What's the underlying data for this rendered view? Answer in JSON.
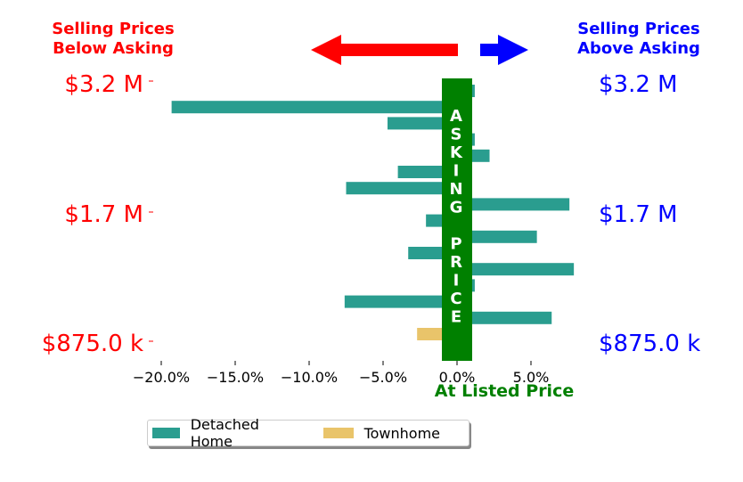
{
  "chart_data": {
    "type": "bar",
    "orientation": "horizontal",
    "title_left": [
      "Selling Prices",
      "Below Asking"
    ],
    "title_right": [
      "Selling Prices",
      "Above Asking"
    ],
    "xlabel": "At Listed Price",
    "x_ticks": [
      -20,
      -15,
      -10,
      -5,
      0,
      5
    ],
    "x_tick_labels": [
      "−20.0%",
      "−15.0%",
      "−10.0%",
      "−5.0%",
      "0.0%",
      "5.0%"
    ],
    "xlim": [
      -22,
      9
    ],
    "y_tick_labels_left": [
      "$3.2 M",
      "$1.7 M",
      "$875.0 k"
    ],
    "y_tick_labels_right": [
      "$3.2 M",
      "$1.7 M",
      "$875.0 k"
    ],
    "center_label": [
      "A",
      "S",
      "K",
      "I",
      "N",
      "G",
      "",
      "P",
      "R",
      "I",
      "C",
      "E"
    ],
    "legend_position": "lower-center",
    "series": [
      {
        "name": "Detached Home",
        "color": "#2a9d8f",
        "values": [
          1.2,
          -19.3,
          -4.7,
          1.2,
          2.2,
          -4.0,
          -7.5,
          7.6,
          -2.1,
          5.4,
          -3.3,
          7.9,
          1.2,
          -7.6,
          6.4,
          null
        ]
      },
      {
        "name": "Townhome",
        "color": "#e9c46a",
        "values": [
          null,
          null,
          null,
          null,
          null,
          null,
          null,
          null,
          null,
          null,
          null,
          null,
          null,
          null,
          null,
          -2.7
        ]
      }
    ],
    "colors": {
      "below": "#ff0000",
      "above": "#0000ff",
      "asking": "#008000"
    }
  }
}
